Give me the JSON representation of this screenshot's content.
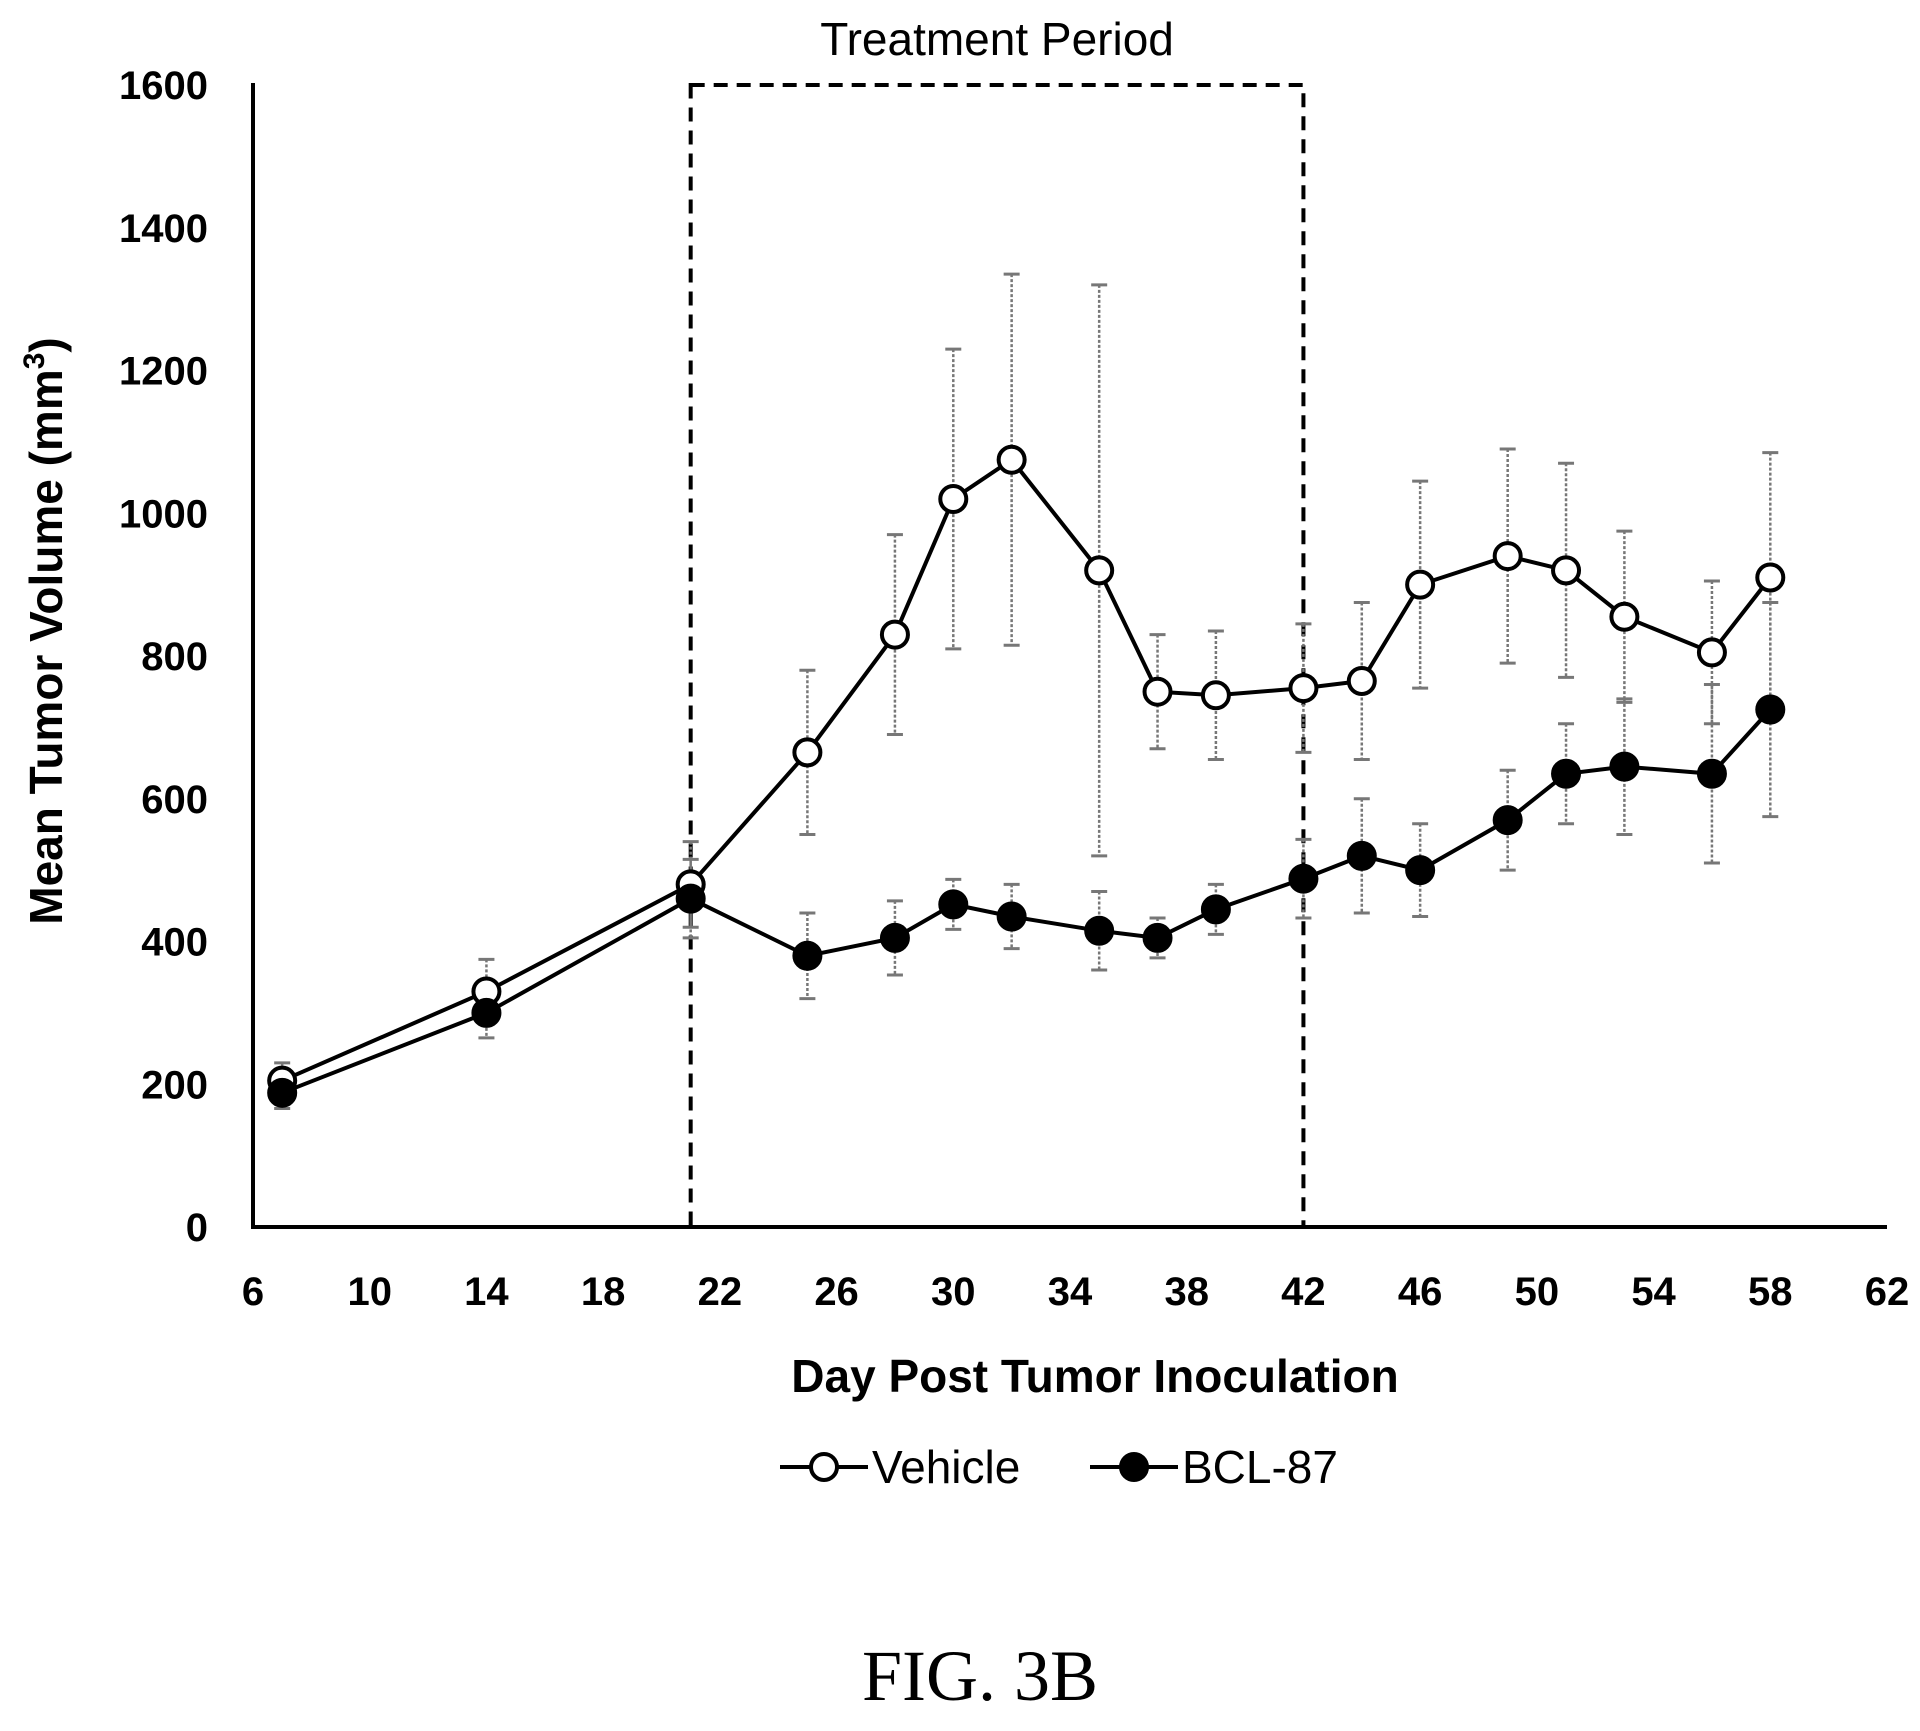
{
  "chart_data": {
    "type": "line",
    "title": "",
    "xlabel": "Day Post Tumor Inoculation",
    "ylabel_main": "Mean Tumor Volume  (mm",
    "ylabel_sup": "3",
    "ylabel_close": ")",
    "xlim": [
      6,
      62
    ],
    "ylim": [
      0,
      1600
    ],
    "x_ticks": [
      "6",
      "10",
      "14",
      "18",
      "22",
      "26",
      "30",
      "34",
      "38",
      "42",
      "46",
      "50",
      "54",
      "58",
      "62"
    ],
    "y_ticks": [
      "0",
      "200",
      "400",
      "600",
      "800",
      "1000",
      "1200",
      "1400",
      "1600"
    ],
    "grid": false,
    "legend_position": "bottom",
    "series": [
      {
        "name": "Vehicle",
        "marker": "open-circle",
        "x": [
          7,
          14,
          21,
          25,
          28,
          30,
          32,
          35,
          37,
          39,
          42,
          44,
          46,
          49,
          51,
          53,
          56,
          58
        ],
        "y": [
          205,
          330,
          480,
          665,
          830,
          1020,
          1075,
          920,
          750,
          745,
          755,
          765,
          900,
          940,
          920,
          855,
          805,
          910
        ],
        "y_err": [
          25,
          45,
          60,
          115,
          140,
          210,
          260,
          400,
          80,
          90,
          90,
          110,
          145,
          150,
          150,
          120,
          100,
          175
        ]
      },
      {
        "name": "BCL-87",
        "marker": "filled-circle",
        "x": [
          7,
          14,
          21,
          25,
          28,
          30,
          32,
          35,
          37,
          39,
          42,
          44,
          46,
          49,
          51,
          53,
          56,
          58
        ],
        "y": [
          188,
          300,
          460,
          380,
          405,
          452,
          435,
          415,
          405,
          445,
          488,
          520,
          500,
          570,
          635,
          645,
          635,
          725
        ],
        "y_err": [
          22,
          35,
          55,
          60,
          52,
          35,
          45,
          55,
          28,
          35,
          55,
          80,
          65,
          70,
          70,
          95,
          125,
          150
        ]
      }
    ],
    "annotations": [
      {
        "label": "Treatment Period",
        "x_start": 21,
        "x_end": 42,
        "y_start": 0,
        "y_end": 1600,
        "style": "dashed-box"
      }
    ],
    "caption": "FIG. 3B"
  },
  "colors": {
    "line": "#000000",
    "open_marker_fill": "#ffffff",
    "filled_marker_fill": "#000000",
    "error_bar": "#777777"
  }
}
